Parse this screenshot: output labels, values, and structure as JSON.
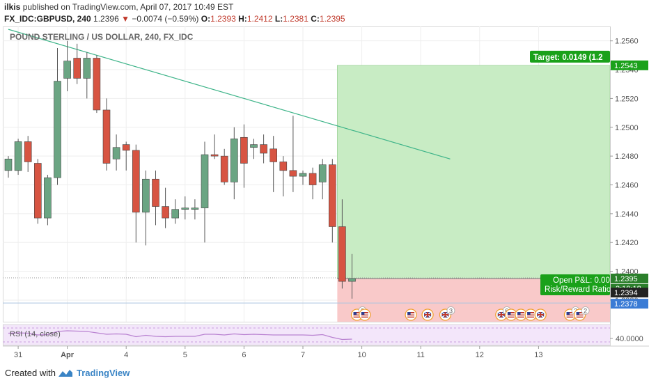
{
  "header": {
    "author": "ilkis",
    "published_text": "published on TradingView.com, April 07, 2017 10:49 EST",
    "symbol": "FX_IDC:GBPUSD, 240",
    "last": "1.2396",
    "change": "−0.0074 (−0.59%)",
    "o_label": "O:",
    "o_value": "1.2393",
    "h_label": "H:",
    "h_value": "1.2412",
    "l_label": "L:",
    "l_value": "1.2381",
    "c_label": "C:",
    "c_value": "1.2395"
  },
  "footer": {
    "created_with": "Created with",
    "brand": "TradingView"
  },
  "colors": {
    "up": "#6ba583",
    "down": "#d75442",
    "trend": "#3eb489",
    "target_zone": "#c8ecc4",
    "stop_zone": "#f9c9c9",
    "rsi_bg": "#f3e6fa",
    "label_green": "#1aa11a"
  },
  "chart_data": {
    "type": "candlestick",
    "title": "POUND STERLING / US DOLLAR, 240, FX_IDC",
    "ylim": [
      1.2365,
      1.257
    ],
    "y_ticks": [
      "1.2560",
      "1.2540",
      "1.2520",
      "1.2500",
      "1.2480",
      "1.2460",
      "1.2440",
      "1.2420",
      "1.2400",
      "1.2380"
    ],
    "x_ticks": [
      {
        "label": "31",
        "i": 1
      },
      {
        "label": "Apr",
        "i": 6
      },
      {
        "label": "4",
        "i": 12
      },
      {
        "label": "5",
        "i": 18
      },
      {
        "label": "6",
        "i": 24
      },
      {
        "label": "7",
        "i": 30
      },
      {
        "label": "10",
        "i": 36
      },
      {
        "label": "11",
        "i": 42
      },
      {
        "label": "12",
        "i": 48
      },
      {
        "label": "13",
        "i": 54
      }
    ],
    "candles": [
      {
        "o": 1.247,
        "h": 1.248,
        "l": 1.2465,
        "c": 1.2478
      },
      {
        "o": 1.247,
        "h": 1.2492,
        "l": 1.2467,
        "c": 1.249
      },
      {
        "o": 1.249,
        "h": 1.2494,
        "l": 1.2469,
        "c": 1.2476
      },
      {
        "o": 1.2475,
        "h": 1.2478,
        "l": 1.2433,
        "c": 1.2437
      },
      {
        "o": 1.2437,
        "h": 1.2467,
        "l": 1.2432,
        "c": 1.2465
      },
      {
        "o": 1.2465,
        "h": 1.2555,
        "l": 1.246,
        "c": 1.2532
      },
      {
        "o": 1.2534,
        "h": 1.256,
        "l": 1.2525,
        "c": 1.2546
      },
      {
        "o": 1.2548,
        "h": 1.2558,
        "l": 1.253,
        "c": 1.2534
      },
      {
        "o": 1.2534,
        "h": 1.2552,
        "l": 1.252,
        "c": 1.2548
      },
      {
        "o": 1.2548,
        "h": 1.255,
        "l": 1.251,
        "c": 1.2512
      },
      {
        "o": 1.2512,
        "h": 1.252,
        "l": 1.247,
        "c": 1.2475
      },
      {
        "o": 1.2478,
        "h": 1.2495,
        "l": 1.247,
        "c": 1.2486
      },
      {
        "o": 1.2488,
        "h": 1.249,
        "l": 1.247,
        "c": 1.2484
      },
      {
        "o": 1.2484,
        "h": 1.2488,
        "l": 1.242,
        "c": 1.2441
      },
      {
        "o": 1.2441,
        "h": 1.247,
        "l": 1.2418,
        "c": 1.2464
      },
      {
        "o": 1.2464,
        "h": 1.247,
        "l": 1.2432,
        "c": 1.2445
      },
      {
        "o": 1.2445,
        "h": 1.2458,
        "l": 1.243,
        "c": 1.2437
      },
      {
        "o": 1.2437,
        "h": 1.245,
        "l": 1.2433,
        "c": 1.2443
      },
      {
        "o": 1.2443,
        "h": 1.2452,
        "l": 1.2436,
        "c": 1.2444
      },
      {
        "o": 1.2443,
        "h": 1.245,
        "l": 1.2436,
        "c": 1.2444
      },
      {
        "o": 1.2444,
        "h": 1.249,
        "l": 1.242,
        "c": 1.2481
      },
      {
        "o": 1.2481,
        "h": 1.2495,
        "l": 1.2478,
        "c": 1.248
      },
      {
        "o": 1.248,
        "h": 1.2485,
        "l": 1.246,
        "c": 1.2462
      },
      {
        "o": 1.2462,
        "h": 1.25,
        "l": 1.245,
        "c": 1.2492
      },
      {
        "o": 1.2493,
        "h": 1.2502,
        "l": 1.2458,
        "c": 1.2475
      },
      {
        "o": 1.2486,
        "h": 1.2492,
        "l": 1.2478,
        "c": 1.2488
      },
      {
        "o": 1.2488,
        "h": 1.2495,
        "l": 1.2475,
        "c": 1.2482
      },
      {
        "o": 1.2485,
        "h": 1.2494,
        "l": 1.2455,
        "c": 1.2476
      },
      {
        "o": 1.2476,
        "h": 1.248,
        "l": 1.2452,
        "c": 1.247
      },
      {
        "o": 1.247,
        "h": 1.2508,
        "l": 1.2455,
        "c": 1.2466
      },
      {
        "o": 1.2466,
        "h": 1.247,
        "l": 1.246,
        "c": 1.2468
      },
      {
        "o": 1.2468,
        "h": 1.2472,
        "l": 1.245,
        "c": 1.246
      },
      {
        "o": 1.2462,
        "h": 1.2478,
        "l": 1.245,
        "c": 1.2474
      },
      {
        "o": 1.2474,
        "h": 1.2478,
        "l": 1.242,
        "c": 1.2431
      },
      {
        "o": 1.2431,
        "h": 1.245,
        "l": 1.2388,
        "c": 1.2393
      },
      {
        "o": 1.2393,
        "h": 1.2412,
        "l": 1.2381,
        "c": 1.2395
      }
    ],
    "trendline": [
      {
        "i": 0,
        "y": 1.2568
      },
      {
        "i": 45,
        "y": 1.2478
      }
    ],
    "position": {
      "start_i": 34,
      "end_i": 66,
      "entry": 1.2395,
      "target": 1.2543,
      "stop": 1.2378
    },
    "price_labels": {
      "target_axis": "1.2543",
      "last_axis": "1.2395",
      "countdown": "2:10:18",
      "stop_axis_dark": "1.2394",
      "stop_axis": "1.2378"
    },
    "position_labels": {
      "target": "Target: 0.0149 (1.2",
      "open_pnl": "Open P&L: 0.00",
      "risk_reward": "Risk/Reward Ratio"
    },
    "events": [
      {
        "i": 35.5,
        "flag": "us",
        "count": "2"
      },
      {
        "i": 36.3,
        "flag": "us",
        "count": ""
      },
      {
        "i": 41,
        "flag": "us",
        "count": ""
      },
      {
        "i": 42.7,
        "flag": "uk",
        "count": ""
      },
      {
        "i": 44.5,
        "flag": "uk",
        "count": "3"
      },
      {
        "i": 50.2,
        "flag": "uk",
        "count": "6"
      },
      {
        "i": 51.2,
        "flag": "us",
        "count": ""
      },
      {
        "i": 52.2,
        "flag": "us",
        "count": ""
      },
      {
        "i": 53.2,
        "flag": "us",
        "count": ""
      },
      {
        "i": 54.2,
        "flag": "uk",
        "count": ""
      },
      {
        "i": 57.2,
        "flag": "us",
        "count": "2"
      },
      {
        "i": 58.2,
        "flag": "us",
        "count": "2"
      }
    ],
    "rsi": {
      "label": "RSI (14, close)",
      "tick": "40.0000",
      "ylim": [
        20,
        80
      ],
      "values": [
        55,
        56,
        55,
        50,
        51,
        60,
        62,
        61,
        60,
        56,
        52,
        53,
        52,
        45,
        49,
        46,
        45,
        46,
        46,
        46,
        52,
        52,
        50,
        53,
        51,
        52,
        51,
        50,
        50,
        50,
        50,
        49,
        51,
        43,
        37,
        38
      ]
    }
  }
}
